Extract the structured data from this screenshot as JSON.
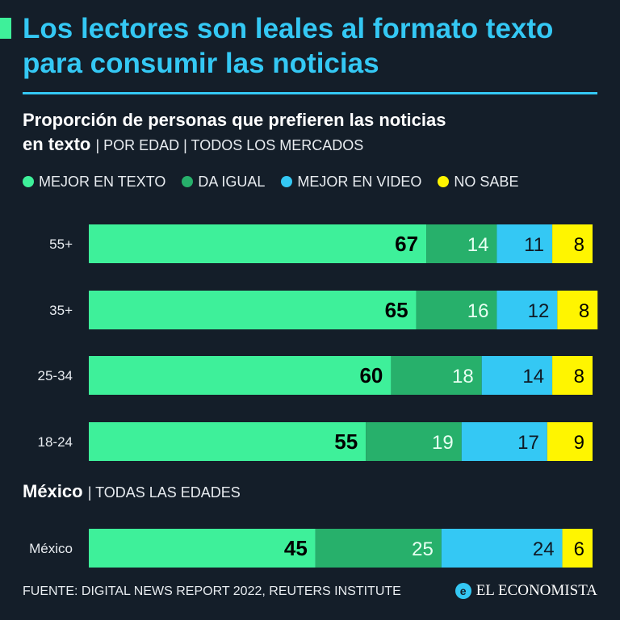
{
  "title": "Los lectores son leales al formato texto para consumir las noticias",
  "subtitle": {
    "main_part1": "Proporción de personas que prefieren las noticias",
    "main_part2": "en texto",
    "qualifier": "| POR EDAD | TODOS LOS MERCADOS"
  },
  "section2": {
    "bold": "México",
    "qualifier": "| TODAS LAS EDADES"
  },
  "legend": [
    {
      "label": "MEJOR EN TEXTO",
      "color": "#3ef09a"
    },
    {
      "label": "DA IGUAL",
      "color": "#27b06b"
    },
    {
      "label": "MEJOR EN VIDEO",
      "color": "#34c8f4"
    },
    {
      "label": "NO SABE",
      "color": "#fff500"
    }
  ],
  "footer": {
    "source": "FUENTE: DIGITAL NEWS REPORT 2022, REUTERS INSTITUTE",
    "brand": "EL ECONOMISTA",
    "brand_logo": "e"
  },
  "chart_data": {
    "type": "bar",
    "orientation": "horizontal",
    "stacked": true,
    "normalized_to_percent": true,
    "categories": [
      "55+",
      "35+",
      "25-34",
      "18-24",
      "México"
    ],
    "series": [
      {
        "name": "MEJOR EN TEXTO",
        "values": [
          67,
          65,
          60,
          55,
          45
        ]
      },
      {
        "name": "DA IGUAL",
        "values": [
          14,
          16,
          18,
          19,
          25
        ]
      },
      {
        "name": "MEJOR EN VIDEO",
        "values": [
          11,
          12,
          14,
          17,
          24
        ]
      },
      {
        "name": "NO SABE",
        "values": [
          8,
          8,
          8,
          9,
          6
        ]
      }
    ],
    "title": "Proporción de personas que prefieren las noticias en texto",
    "xlabel": "",
    "ylabel": ""
  }
}
